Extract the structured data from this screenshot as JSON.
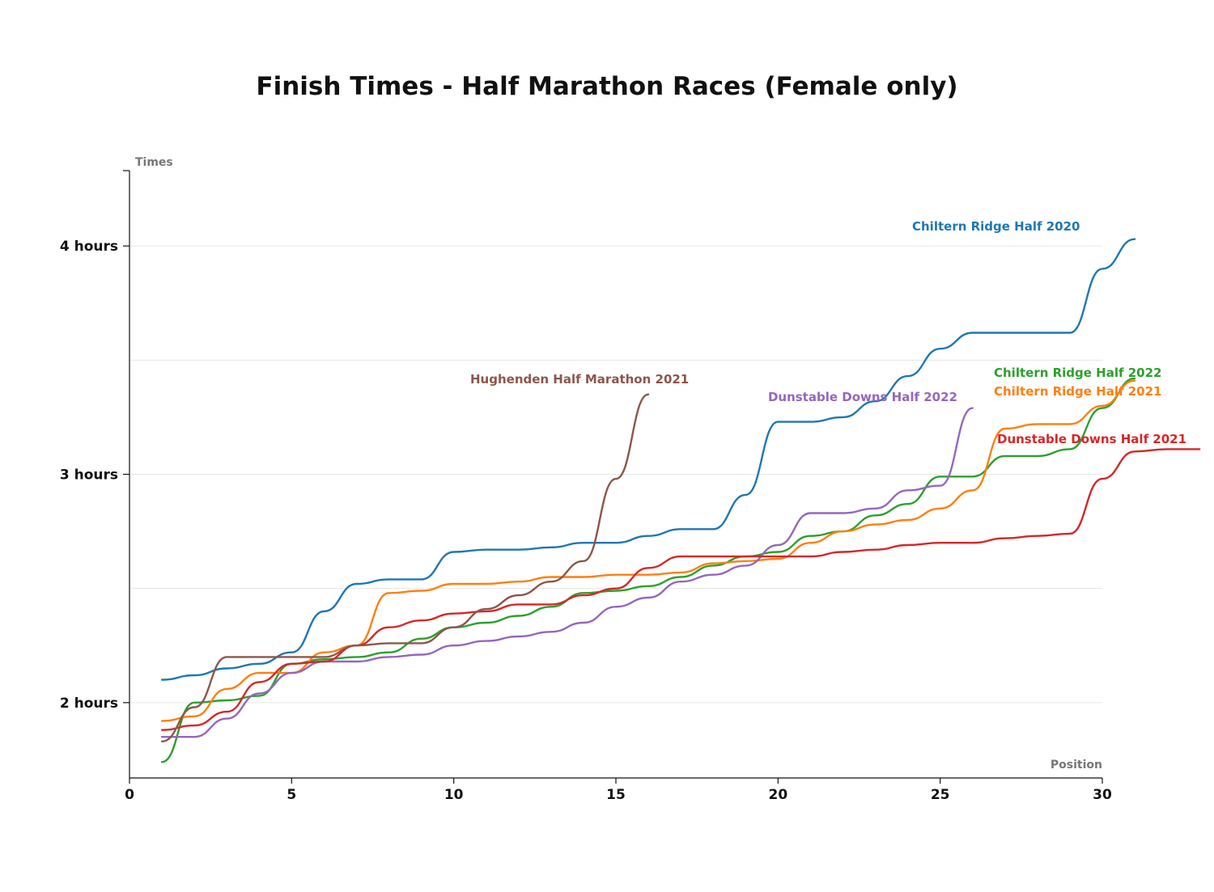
{
  "chart_data": {
    "type": "line",
    "title": "Finish Times - Half Marathon Races (Female only)",
    "xlabel": "Position",
    "ylabel": "Times",
    "xlim": [
      0,
      30
    ],
    "ylim": [
      1.67,
      4.33
    ],
    "x_ticks": [
      0,
      5,
      10,
      15,
      20,
      25,
      30
    ],
    "y_ticks": [
      {
        "value": 2,
        "label": "2 hours"
      },
      {
        "value": 3,
        "label": "3 hours"
      },
      {
        "value": 4,
        "label": "4 hours"
      }
    ],
    "grid_values": [
      2,
      2.5,
      3,
      3.5,
      4
    ],
    "grid": true,
    "legend": "inline labels at line ends",
    "series": [
      {
        "name": "Chiltern Ridge Half 2020",
        "color": "#1f77b4",
        "values": [
          2.1,
          2.12,
          2.15,
          2.17,
          2.22,
          2.4,
          2.52,
          2.54,
          2.54,
          2.66,
          2.67,
          2.67,
          2.68,
          2.7,
          2.7,
          2.73,
          2.76,
          2.76,
          2.91,
          3.23,
          3.23,
          3.25,
          3.32,
          3.43,
          3.55,
          3.62,
          3.62,
          3.62,
          3.62,
          3.9,
          4.03
        ]
      },
      {
        "name": "Chiltern Ridge Half 2022",
        "color": "#2ca02c",
        "values": [
          1.74,
          2.0,
          2.01,
          2.03,
          2.17,
          2.19,
          2.2,
          2.22,
          2.28,
          2.33,
          2.35,
          2.38,
          2.42,
          2.48,
          2.49,
          2.51,
          2.55,
          2.6,
          2.64,
          2.66,
          2.73,
          2.75,
          2.82,
          2.87,
          2.99,
          2.99,
          3.08,
          3.08,
          3.11,
          3.29,
          3.42
        ]
      },
      {
        "name": "Chiltern Ridge Half 2021",
        "color": "#ff7f0e",
        "values": [
          1.92,
          1.94,
          2.06,
          2.13,
          2.13,
          2.22,
          2.25,
          2.48,
          2.49,
          2.52,
          2.52,
          2.53,
          2.55,
          2.55,
          2.56,
          2.56,
          2.57,
          2.61,
          2.62,
          2.63,
          2.7,
          2.75,
          2.78,
          2.8,
          2.85,
          2.93,
          3.2,
          3.22,
          3.22,
          3.3,
          3.41
        ]
      },
      {
        "name": "Dunstable Downs Half 2022",
        "color": "#9467bd",
        "values": [
          1.85,
          1.85,
          1.93,
          2.04,
          2.13,
          2.18,
          2.18,
          2.2,
          2.21,
          2.25,
          2.27,
          2.29,
          2.31,
          2.35,
          2.42,
          2.46,
          2.53,
          2.56,
          2.6,
          2.69,
          2.83,
          2.83,
          2.85,
          2.93,
          2.95,
          3.29
        ]
      },
      {
        "name": "Dunstable Downs Half 2021",
        "color": "#d62728",
        "values": [
          1.88,
          1.9,
          1.96,
          2.09,
          2.17,
          2.18,
          2.25,
          2.33,
          2.36,
          2.39,
          2.4,
          2.43,
          2.43,
          2.47,
          2.5,
          2.59,
          2.64,
          2.64,
          2.64,
          2.64,
          2.64,
          2.66,
          2.67,
          2.69,
          2.7,
          2.7,
          2.72,
          2.73,
          2.74,
          2.98,
          3.1,
          3.11,
          3.11
        ]
      },
      {
        "name": "Hughenden Half Marathon 2021",
        "color": "#8c564b",
        "values": [
          1.83,
          1.98,
          2.2,
          2.2,
          2.2,
          2.2,
          2.25,
          2.26,
          2.26,
          2.33,
          2.41,
          2.47,
          2.53,
          2.62,
          2.98,
          3.35
        ]
      }
    ]
  }
}
